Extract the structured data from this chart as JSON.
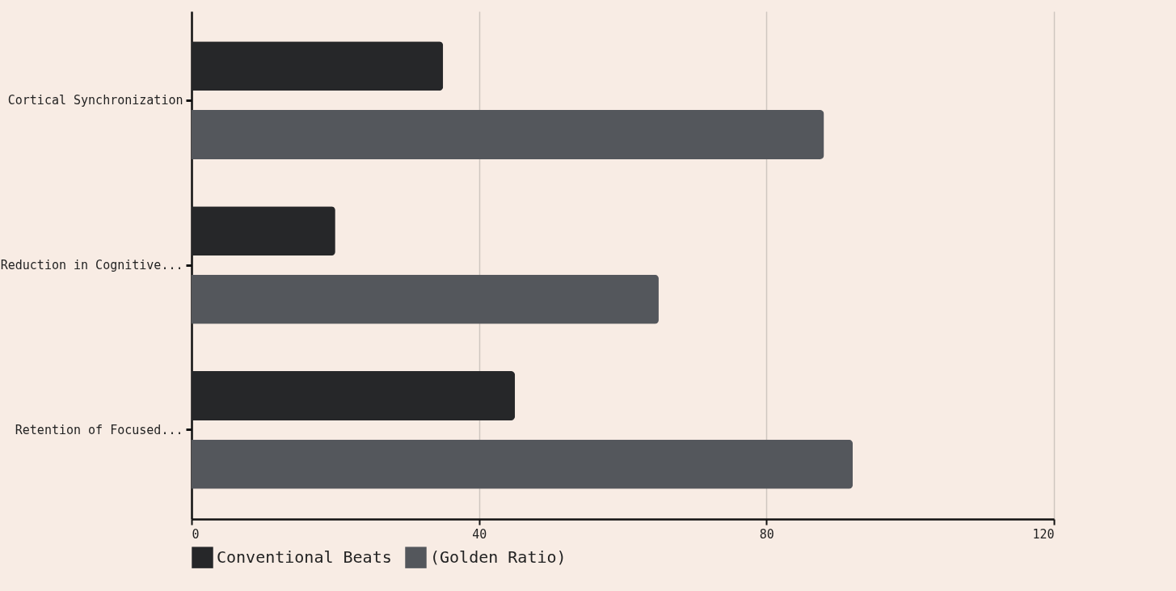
{
  "chart_data": {
    "type": "bar",
    "orientation": "horizontal",
    "categories": [
      "Cortical Synchronization",
      "Reduction in Cognitive...",
      "Retention of Focused..."
    ],
    "series": [
      {
        "name": "Conventional Beats",
        "color": "#262729",
        "values": [
          35,
          20,
          45
        ]
      },
      {
        "name": "(Golden Ratio)",
        "color": "#54575c",
        "values": [
          88,
          65,
          92
        ]
      }
    ],
    "xlim": [
      0,
      120
    ],
    "xticks": [
      0,
      40,
      80,
      120
    ],
    "grid": "x",
    "legend": "bottom"
  }
}
